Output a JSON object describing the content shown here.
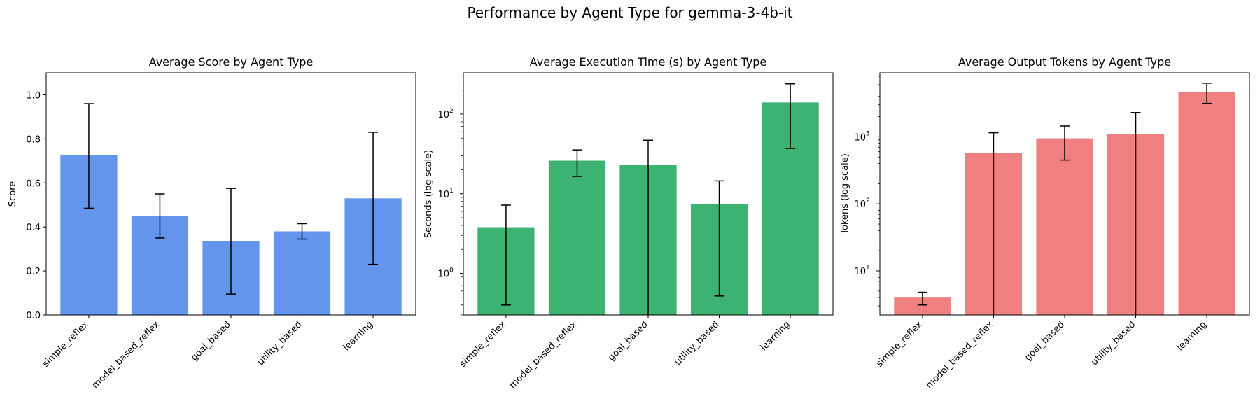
{
  "figure": {
    "title": "Performance by Agent Type for gemma-3-4b-it"
  },
  "chart_data": [
    {
      "type": "bar",
      "title": "Average Score by Agent Type",
      "xlabel": "",
      "ylabel": "Score",
      "yscale": "linear",
      "ylim": [
        0,
        1.1
      ],
      "yticks": [
        0.0,
        0.2,
        0.4,
        0.6,
        0.8,
        1.0
      ],
      "ytick_labels": [
        "0.0",
        "0.2",
        "0.4",
        "0.6",
        "0.8",
        "1.0"
      ],
      "categories": [
        "simple_reflex",
        "model_based_reflex",
        "goal_based",
        "utility_based",
        "learning"
      ],
      "values": [
        0.725,
        0.45,
        0.335,
        0.38,
        0.53
      ],
      "error_low": [
        0.485,
        0.35,
        0.095,
        0.345,
        0.23
      ],
      "error_high": [
        0.96,
        0.55,
        0.575,
        0.415,
        0.83
      ],
      "color": "#6495ED",
      "grid": false
    },
    {
      "type": "bar",
      "title": "Average Execution Time (s) by Agent Type",
      "xlabel": "",
      "ylabel": "Seconds (log scale)",
      "yscale": "log",
      "ylim": [
        0.3,
        330
      ],
      "yticks": [
        1,
        10,
        100
      ],
      "ytick_labels": [
        "10^0",
        "10^1",
        "10^2"
      ],
      "categories": [
        "simple_reflex",
        "model_based_reflex",
        "goal_based",
        "utility_based",
        "learning"
      ],
      "values": [
        3.8,
        26,
        23,
        7.4,
        140
      ],
      "error_low": [
        0.4,
        16.5,
        0.3,
        0.52,
        37
      ],
      "error_high": [
        7.2,
        35.5,
        47,
        14.5,
        240
      ],
      "color": "#3CB371",
      "grid": false
    },
    {
      "type": "bar",
      "title": "Average Output Tokens by Agent Type",
      "xlabel": "",
      "ylabel": "Tokens (log scale)",
      "yscale": "log",
      "ylim": [
        2.2,
        9000
      ],
      "yticks": [
        10,
        100,
        1000
      ],
      "ytick_labels": [
        "10^1",
        "10^2",
        "10^3"
      ],
      "categories": [
        "simple_reflex",
        "model_based_reflex",
        "goal_based",
        "utility_based",
        "learning"
      ],
      "values": [
        4,
        570,
        950,
        1100,
        4700
      ],
      "error_low": [
        3.1,
        2.2,
        450,
        2.2,
        3150
      ],
      "error_high": [
        4.8,
        1150,
        1450,
        2300,
        6300
      ],
      "color": "#F08080",
      "grid": false
    }
  ]
}
